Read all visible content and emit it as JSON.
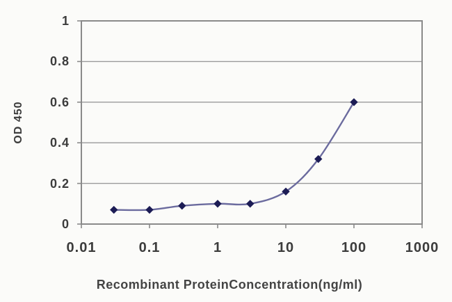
{
  "chart_data": {
    "type": "line",
    "title": "",
    "xlabel": "Recombinant ProteinConcentration(ng/ml)",
    "ylabel": "OD 450",
    "x_scale": "log",
    "x": [
      0.03,
      0.1,
      0.3,
      1,
      3,
      10,
      30,
      100
    ],
    "series": [
      {
        "name": "OD 450",
        "values": [
          0.07,
          0.07,
          0.09,
          0.1,
          0.1,
          0.16,
          0.32,
          0.6
        ]
      }
    ],
    "xlim": [
      0.01,
      1000
    ],
    "ylim": [
      0,
      1
    ],
    "x_ticks": [
      0.01,
      0.1,
      1,
      10,
      100,
      1000
    ],
    "x_tick_labels": [
      "0.01",
      "0.1",
      "1",
      "10",
      "100",
      "1000"
    ],
    "y_ticks": [
      0,
      0.2,
      0.4,
      0.6,
      0.8,
      1
    ],
    "y_tick_labels": [
      "0",
      "0.2",
      "0.4",
      "0.6",
      "0.8",
      "1"
    ],
    "grid": "horizontal",
    "legend": "none",
    "marker": "diamond",
    "colors": {
      "line": "#6b6b9e",
      "marker": "#1c1c55",
      "gridline": "#9a9a9a",
      "border": "#8a8a8a",
      "text": "#3c3c3c",
      "background": "#fbfbf9"
    }
  }
}
